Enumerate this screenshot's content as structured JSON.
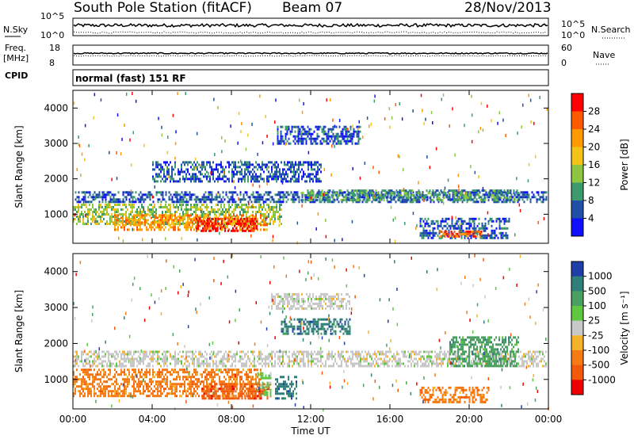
{
  "header": {
    "title": "South Pole Station (fitACF)",
    "beam": "Beam 07",
    "date": "28/Nov/2013"
  },
  "top_panels": {
    "nsky": {
      "label": "N.Sky",
      "ticks": [
        "10^5",
        "10^0"
      ],
      "right_ticks": [
        "10^5",
        "10^0"
      ],
      "right_label": "N.Search"
    },
    "freq": {
      "label_line1": "Freq.",
      "label_line2": "[MHz]",
      "ticks": [
        "18",
        "8"
      ],
      "right_ticks": [
        "60",
        "0"
      ],
      "right_label": "Nave"
    },
    "cpid": {
      "label": "CPID",
      "mode": "normal (fast) 151 RF"
    }
  },
  "chart_data": [
    {
      "type": "heatmap",
      "name": "power",
      "xlabel": "",
      "ylabel": "Slant Range [km]",
      "x_ticks": [
        "00:00",
        "04:00",
        "08:00",
        "12:00",
        "16:00",
        "20:00",
        "00:00"
      ],
      "xlim": [
        0,
        24
      ],
      "ylim": [
        180,
        4500
      ],
      "y_ticks": [
        1000,
        2000,
        3000,
        4000
      ],
      "colorbar": {
        "label": "Power [dB]",
        "ticks": [
          "28",
          "24",
          "20",
          "16",
          "12",
          "8",
          "4"
        ],
        "colors": [
          "#ff0000",
          "#ff5a00",
          "#ff9a00",
          "#f3c318",
          "#8dc640",
          "#3c9a6e",
          "#1f4fa6",
          "#1010ff"
        ]
      },
      "bands": [
        {
          "x": [
            0.1,
            23.9
          ],
          "y": [
            1350,
            1650
          ],
          "level": 1
        },
        {
          "x": [
            0.0,
            10.5
          ],
          "y": [
            700,
            1300
          ],
          "level": 3
        },
        {
          "x": [
            2.0,
            9.8
          ],
          "y": [
            550,
            1000
          ],
          "level": 5
        },
        {
          "x": [
            6.2,
            9.3
          ],
          "y": [
            550,
            900
          ],
          "level": 7
        },
        {
          "x": [
            10.3,
            14.5
          ],
          "y": [
            3000,
            3500
          ],
          "level": 1
        },
        {
          "x": [
            4.0,
            12.5
          ],
          "y": [
            1900,
            2500
          ],
          "level": 1
        },
        {
          "x": [
            17.5,
            22.0
          ],
          "y": [
            300,
            900
          ],
          "level": 1
        },
        {
          "x": [
            18.5,
            20.6
          ],
          "y": [
            380,
            540
          ],
          "level": 6
        },
        {
          "x": [
            11.5,
            22.5
          ],
          "y": [
            1400,
            1700
          ],
          "level": 2
        }
      ]
    },
    {
      "type": "heatmap",
      "name": "velocity",
      "xlabel": "Time UT",
      "ylabel": "Slant Range [km]",
      "x_ticks": [
        "00:00",
        "04:00",
        "08:00",
        "12:00",
        "16:00",
        "20:00",
        "00:00"
      ],
      "xlim": [
        0,
        24
      ],
      "ylim": [
        180,
        4500
      ],
      "y_ticks": [
        1000,
        2000,
        3000,
        4000
      ],
      "colorbar": {
        "label": "Velocity [m s⁻¹]",
        "ticks": [
          "1000",
          "500",
          "100",
          "25",
          "-25",
          "-100",
          "-500",
          "-1000"
        ],
        "colors": [
          "#1f3ea8",
          "#2f7f7a",
          "#4aa060",
          "#5fc840",
          "#c8c8c8",
          "#f7b22c",
          "#f57a14",
          "#f05a0a",
          "#ee0000"
        ]
      },
      "bands": [
        {
          "x": [
            0.0,
            23.9
          ],
          "y": [
            1400,
            1800
          ],
          "color": 4
        },
        {
          "x": [
            0.0,
            9.5
          ],
          "y": [
            550,
            1300
          ],
          "color": 6
        },
        {
          "x": [
            6.5,
            10.0
          ],
          "y": [
            500,
            900
          ],
          "color": 7
        },
        {
          "x": [
            9.3,
            10.0
          ],
          "y": [
            600,
            1200
          ],
          "color": 3
        },
        {
          "x": [
            10.2,
            11.3
          ],
          "y": [
            450,
            1100
          ],
          "color": 1
        },
        {
          "x": [
            10.5,
            14.0
          ],
          "y": [
            2300,
            2700
          ],
          "color": 1
        },
        {
          "x": [
            10.0,
            14.0
          ],
          "y": [
            3000,
            3400
          ],
          "color": 4
        },
        {
          "x": [
            17.5,
            21.0
          ],
          "y": [
            350,
            800
          ],
          "color": 6
        },
        {
          "x": [
            19.0,
            22.5
          ],
          "y": [
            1400,
            2200
          ],
          "color": 2
        }
      ]
    }
  ]
}
